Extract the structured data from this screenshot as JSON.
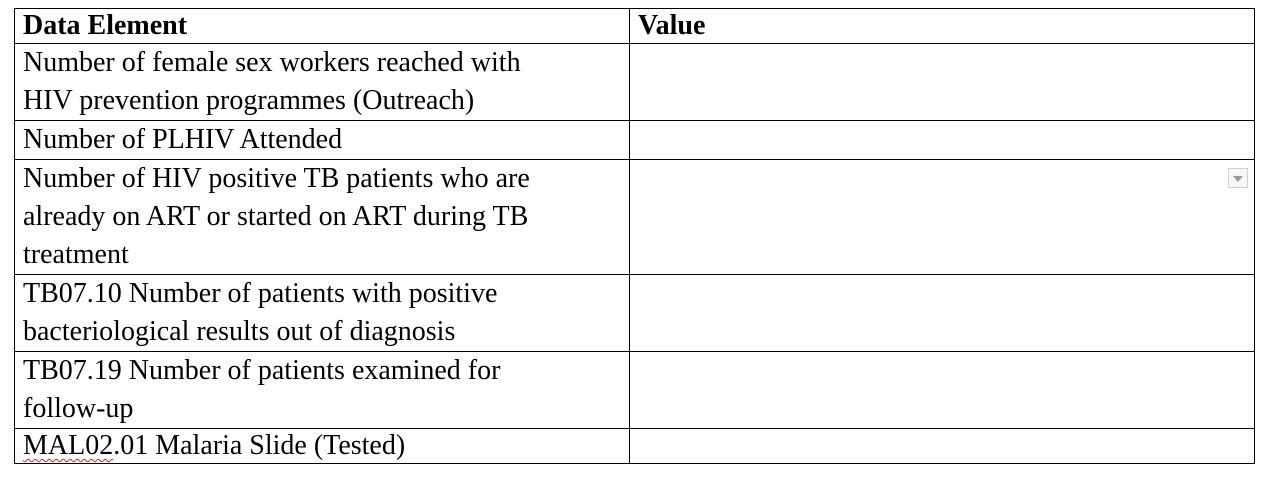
{
  "table": {
    "headers": {
      "element": "Data Element",
      "value": "Value"
    },
    "rows": [
      {
        "lines": [
          "Number of female sex workers reached with",
          "HIV prevention programmes (Outreach)"
        ],
        "value": ""
      },
      {
        "lines": [
          "Number of PLHIV Attended"
        ],
        "value": ""
      },
      {
        "lines": [
          "Number of HIV positive TB patients who are",
          "already on ART or started on ART during TB",
          "treatment"
        ],
        "value": "",
        "control": "chevron-down-icon"
      },
      {
        "lines": [
          "TB07.10 Number of patients with positive",
          "bacteriological results out of diagnosis"
        ],
        "value": ""
      },
      {
        "lines": [
          "TB07.19 Number of patients examined for",
          "follow-up"
        ],
        "value": ""
      },
      {
        "code": "MAL02",
        "rest": ".01 Malaria Slide (Tested)",
        "value": ""
      }
    ]
  }
}
